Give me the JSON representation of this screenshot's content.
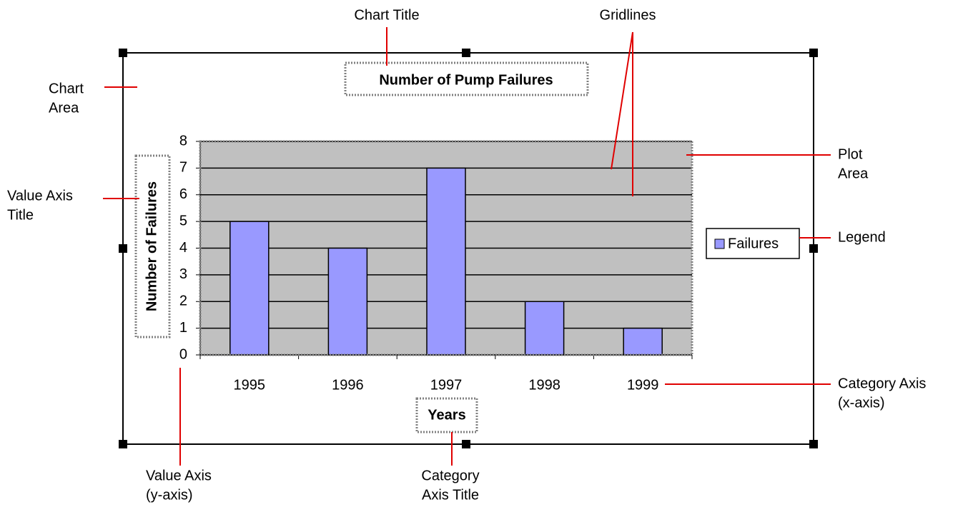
{
  "chart_data": {
    "type": "bar",
    "title": "Number of Pump Failures",
    "x_label": "Years",
    "y_label": "Number of Failures",
    "categories": [
      "1995",
      "1996",
      "1997",
      "1998",
      "1999"
    ],
    "series": [
      {
        "name": "Failures",
        "color": "#9999ff",
        "values": [
          5,
          4,
          7,
          2,
          1
        ]
      }
    ],
    "ylim": [
      0,
      8
    ],
    "yticks": [
      0,
      1,
      2,
      3,
      4,
      5,
      6,
      7,
      8
    ],
    "grid": true,
    "legend": "right",
    "annotations": [
      [
        "Chart Title"
      ],
      [
        "Gridlines"
      ],
      [
        "Chart",
        "Area"
      ],
      [
        "Plot",
        "Area"
      ],
      [
        "Value Axis",
        "Title"
      ],
      [
        "Legend"
      ],
      [
        "Category Axis",
        "(x-axis)"
      ],
      [
        "Value Axis",
        "(y-axis)"
      ],
      [
        "Category",
        "Axis Title"
      ]
    ]
  }
}
